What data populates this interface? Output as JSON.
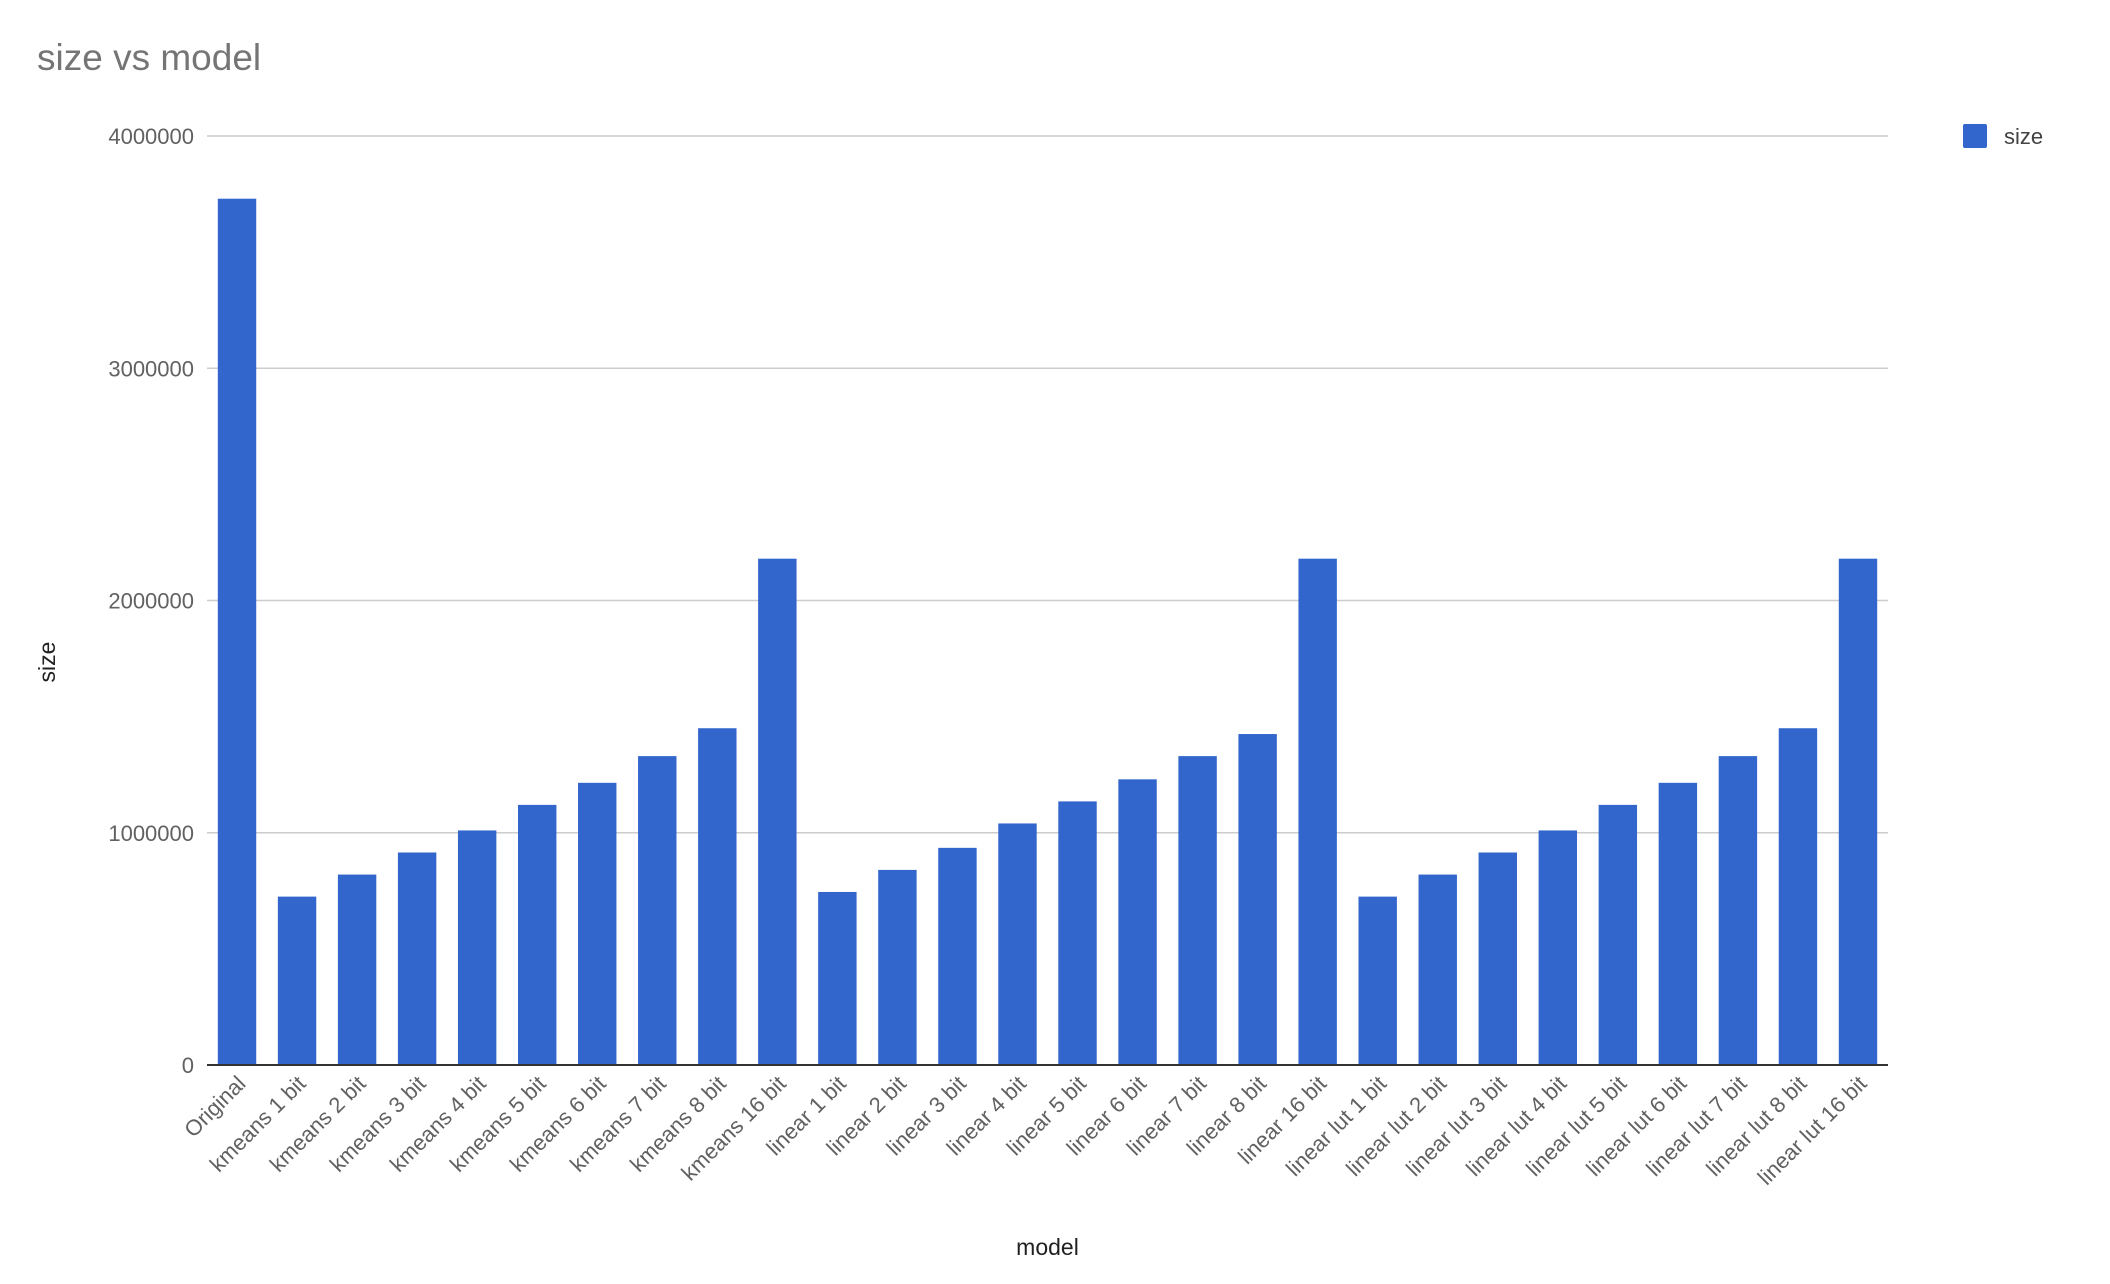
{
  "chart_data": {
    "type": "bar",
    "title": "size vs model",
    "xlabel": "model",
    "ylabel": "size",
    "ylim": [
      0,
      4000000
    ],
    "yticks": [
      0,
      1000000,
      2000000,
      3000000,
      4000000
    ],
    "ytick_labels": [
      "0",
      "1000000",
      "2000000",
      "3000000",
      "4000000"
    ],
    "grid": true,
    "legend_position": "top-right",
    "categories": [
      "Original",
      "kmeans 1 bit",
      "kmeans 2 bit",
      "kmeans 3 bit",
      "kmeans 4 bit",
      "kmeans 5 bit",
      "kmeans 6 bit",
      "kmeans 7 bit",
      "kmeans 8 bit",
      "kmeans 16 bit",
      "linear 1 bit",
      "linear 2 bit",
      "linear 3 bit",
      "linear 4 bit",
      "linear 5 bit",
      "linear 6 bit",
      "linear 7 bit",
      "linear 8 bit",
      "linear 16 bit",
      "linear lut 1 bit",
      "linear lut 2 bit",
      "linear lut 3 bit",
      "linear lut 4 bit",
      "linear lut 5 bit",
      "linear lut 6 bit",
      "linear lut 7 bit",
      "linear lut 8 bit",
      "linear lut 16 bit"
    ],
    "series": [
      {
        "name": "size",
        "color": "#3366cc",
        "values": [
          3730000,
          725000,
          820000,
          915000,
          1010000,
          1120000,
          1215000,
          1330000,
          1450000,
          2180000,
          745000,
          840000,
          935000,
          1040000,
          1135000,
          1230000,
          1330000,
          1425000,
          2180000,
          725000,
          820000,
          915000,
          1010000,
          1120000,
          1215000,
          1330000,
          1450000,
          2180000
        ]
      }
    ]
  }
}
